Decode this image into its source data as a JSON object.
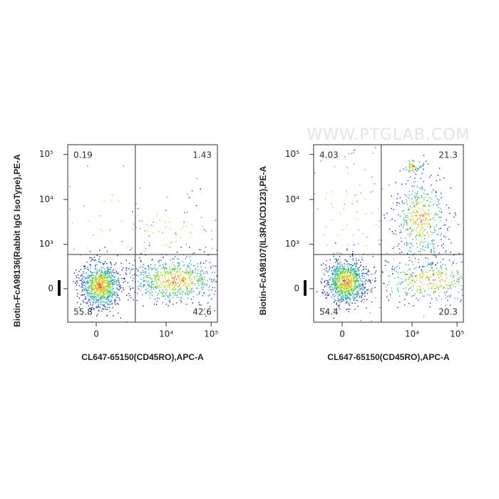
{
  "watermark": "WWW.PTGLAB.COM",
  "chart_data": [
    {
      "type": "quadrant-scatter",
      "x_label": "CL647-65150(CD45RO),APC-A",
      "y_label": "Biotin-FcA98136(Rabbit IgG IsoType),PE-A",
      "xlim": [
        -1140,
        138000
      ],
      "ylim": [
        -560,
        165000
      ],
      "xticks": [
        0,
        {
          "value": 10000,
          "label": "10⁴"
        },
        {
          "value": 100000,
          "label": "10⁵"
        }
      ],
      "yticks": [
        0,
        {
          "value": 1000,
          "label": "10³"
        },
        {
          "value": 10000,
          "label": "10⁴"
        },
        {
          "value": 100000,
          "label": "10⁵"
        }
      ],
      "gate": {
        "x": 2030,
        "y": 580
      },
      "quadrants": [
        {
          "position": "upper-left",
          "value": 0.19
        },
        {
          "position": "upper-right",
          "value": 1.43
        },
        {
          "position": "lower-left",
          "value": 55.8
        },
        {
          "position": "lower-right",
          "value": 42.6
        }
      ]
    },
    {
      "type": "quadrant-scatter",
      "x_label": "CL647-65150(CD45RO),APC-A",
      "y_label": "Biotin-FcA98107(IL3RA/CD123),PE-A",
      "xlim": [
        -1140,
        138000
      ],
      "ylim": [
        -560,
        165000
      ],
      "xticks": [
        0,
        {
          "value": 10000,
          "label": "10⁴"
        },
        {
          "value": 100000,
          "label": "10⁵"
        }
      ],
      "yticks": [
        0,
        {
          "value": 1000,
          "label": "10³"
        },
        {
          "value": 10000,
          "label": "10⁴"
        },
        {
          "value": 100000,
          "label": "10⁵"
        }
      ],
      "gate": {
        "x": 2030,
        "y": 580
      },
      "quadrants": [
        {
          "position": "upper-left",
          "value": 4.03
        },
        {
          "position": "upper-right",
          "value": 21.3
        },
        {
          "position": "lower-left",
          "value": 54.4
        },
        {
          "position": "lower-right",
          "value": 20.3
        }
      ]
    }
  ]
}
